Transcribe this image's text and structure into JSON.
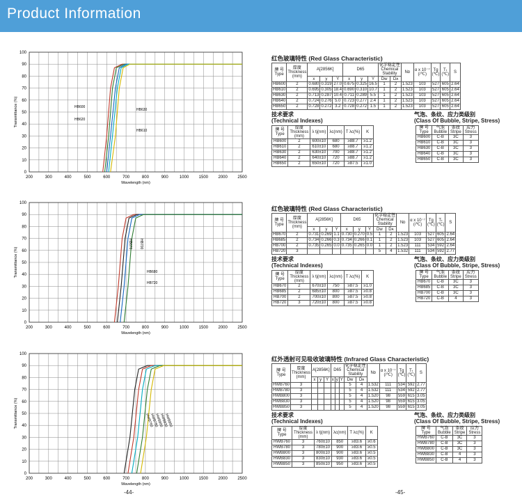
{
  "banner": {
    "title": "Product Information"
  },
  "axes": {
    "xticks": [
      "200",
      "300",
      "400",
      "500",
      "600",
      "700",
      "800",
      "900",
      "1000",
      "1500",
      "2000",
      "2500"
    ],
    "yticks": [
      "0",
      "10",
      "20",
      "30",
      "40",
      "50",
      "60",
      "70",
      "80",
      "90",
      "100"
    ],
    "xlabel": "Wavelength (nm)",
    "ylabel": "Transmittance (%)"
  },
  "chart_data": [
    {
      "type": "line",
      "xlabel": "Wavelength (nm)",
      "ylabel": "Transmittance (%)",
      "ylim": [
        0,
        100
      ],
      "x_ticks": [
        "200",
        "300",
        "400",
        "500",
        "600",
        "700",
        "800",
        "900",
        "1000",
        "1500",
        "2000",
        "2500"
      ],
      "series": [
        {
          "name": "HB600",
          "color": "#c0392b",
          "points": [
            [
              580,
              0
            ],
            [
              600,
              30
            ],
            [
              620,
              70
            ],
            [
              640,
              87
            ],
            [
              680,
              90
            ],
            [
              2500,
              90
            ]
          ]
        },
        {
          "name": "HB610",
          "color": "#2e7d32",
          "points": [
            [
              590,
              0
            ],
            [
              610,
              30
            ],
            [
              630,
              70
            ],
            [
              650,
              87
            ],
            [
              690,
              90
            ],
            [
              2500,
              90
            ]
          ]
        },
        {
          "name": "HB630",
          "color": "#1565c0",
          "points": [
            [
              600,
              0
            ],
            [
              620,
              30
            ],
            [
              645,
              70
            ],
            [
              665,
              87
            ],
            [
              700,
              90
            ],
            [
              2500,
              90
            ]
          ]
        },
        {
          "name": "HB640",
          "color": "#00acc1",
          "points": [
            [
              610,
              0
            ],
            [
              630,
              30
            ],
            [
              655,
              70
            ],
            [
              675,
              87
            ],
            [
              710,
              90
            ],
            [
              2500,
              90
            ]
          ]
        },
        {
          "name": "HB650",
          "color": "#d4b800",
          "points": [
            [
              620,
              0
            ],
            [
              645,
              30
            ],
            [
              665,
              70
            ],
            [
              685,
              87
            ],
            [
              720,
              90
            ],
            [
              2500,
              90
            ]
          ]
        }
      ],
      "annotations": [
        "HB600",
        "HB630",
        "HB620",
        "HB610"
      ]
    },
    {
      "type": "line",
      "xlabel": "Wavelength (nm)",
      "ylabel": "Transmittance (%)",
      "ylim": [
        0,
        100
      ],
      "x_ticks": [
        "200",
        "300",
        "400",
        "500",
        "600",
        "700",
        "800",
        "900",
        "1000",
        "1500",
        "2000",
        "2500"
      ],
      "series": [
        {
          "name": "HB670",
          "color": "#c0392b",
          "points": [
            [
              640,
              0
            ],
            [
              660,
              30
            ],
            [
              680,
              70
            ],
            [
              700,
              87
            ],
            [
              740,
              90
            ],
            [
              2500,
              90
            ]
          ]
        },
        {
          "name": "HB685",
          "color": "#222222",
          "points": [
            [
              655,
              0
            ],
            [
              675,
              30
            ],
            [
              695,
              70
            ],
            [
              715,
              87
            ],
            [
              755,
              90
            ],
            [
              2500,
              90
            ]
          ]
        },
        {
          "name": "HB700",
          "color": "#1565c0",
          "points": [
            [
              670,
              0
            ],
            [
              690,
              30
            ],
            [
              710,
              70
            ],
            [
              730,
              87
            ],
            [
              770,
              90
            ],
            [
              2500,
              90
            ]
          ]
        },
        {
          "name": "HB720",
          "color": "#2e7d32",
          "points": [
            [
              690,
              0
            ],
            [
              710,
              30
            ],
            [
              730,
              70
            ],
            [
              750,
              87
            ],
            [
              790,
              90
            ],
            [
              2500,
              90
            ]
          ]
        }
      ],
      "annotations": [
        "HB670",
        "HB700",
        "HB680",
        "HB720"
      ]
    },
    {
      "type": "line",
      "xlabel": "Wavelength (nm)",
      "ylabel": "Transmittance (%)",
      "ylim": [
        0,
        100
      ],
      "x_ticks": [
        "200",
        "300",
        "400",
        "500",
        "600",
        "700",
        "800",
        "900",
        "1000",
        "1500",
        "2000",
        "2500"
      ],
      "series": [
        {
          "name": "HWB760",
          "color": "#222222",
          "points": [
            [
              690,
              0
            ],
            [
              720,
              30
            ],
            [
              745,
              70
            ],
            [
              765,
              87
            ],
            [
              810,
              90
            ],
            [
              2500,
              90
            ]
          ]
        },
        {
          "name": "HWB780",
          "color": "#c0392b",
          "points": [
            [
              710,
              0
            ],
            [
              740,
              30
            ],
            [
              765,
              70
            ],
            [
              785,
              87
            ],
            [
              830,
              90
            ],
            [
              2500,
              90
            ]
          ]
        },
        {
          "name": "HWB800",
          "color": "#00acc1",
          "points": [
            [
              730,
              0
            ],
            [
              760,
              30
            ],
            [
              785,
              70
            ],
            [
              805,
              87
            ],
            [
              850,
              90
            ],
            [
              2500,
              90
            ]
          ]
        },
        {
          "name": "HWB830",
          "color": "#2e7d32",
          "points": [
            [
              755,
              0
            ],
            [
              785,
              30
            ],
            [
              810,
              70
            ],
            [
              830,
              87
            ],
            [
              875,
              90
            ],
            [
              2500,
              90
            ]
          ]
        },
        {
          "name": "HWB850",
          "color": "#d4b800",
          "points": [
            [
              775,
              0
            ],
            [
              805,
              30
            ],
            [
              830,
              70
            ],
            [
              850,
              87
            ],
            [
              895,
              90
            ],
            [
              2500,
              90
            ]
          ]
        }
      ],
      "annotations": [
        "HWB760",
        "HWB780",
        "HWB800",
        "HWB830",
        "HWB850"
      ]
    }
  ],
  "sections": [
    {
      "title": "红色玻璃特性 (Red Glass Characteristic)",
      "prop_headers": {
        "type": "牌 号\nType",
        "thickness": "厚度\nThickness\n(mm)",
        "a2856": "A[2856K]",
        "d65": "D65",
        "stability": "化学稳定性\nChemical\nStability",
        "nd": "Nᴅ",
        "alpha": "α x 10⁻⁷\n(/℃)",
        "tg": "Tɡ\n(℃)",
        "tt": "Tₜ\n(℃)",
        "s": "S",
        "x": "x",
        "y": "y",
        "Y": "Y",
        "dw": "Dᴡ",
        "da": "Dᴀ"
      },
      "rows": [
        [
          "HB600",
          "2",
          "0.680",
          "0.319",
          "27.0",
          "0.675",
          "0.325",
          "16.5",
          "1",
          "2",
          "1.523",
          "103",
          "527",
          "605",
          "2.64"
        ],
        [
          "HB610",
          "2",
          "0.695",
          "0.305",
          "18.4",
          "0.690",
          "0.310",
          "10.7",
          "1",
          "2",
          "1.523",
          "103",
          "527",
          "605",
          "2.64"
        ],
        [
          "HB630",
          "2",
          "0.713",
          "0.287",
          "10.4",
          "0.711",
          "0.289",
          "5.5",
          "1",
          "2",
          "1.523",
          "103",
          "527",
          "605",
          "2.64"
        ],
        [
          "HB640",
          "2",
          "0.724",
          "0.276",
          "5.0",
          "0.723",
          "0.277",
          "2.4",
          "1",
          "2",
          "1.523",
          "103",
          "527",
          "605",
          "2.64"
        ],
        [
          "HB650",
          "2",
          "0.728",
          "0.272",
          "3.2",
          "0.728",
          "0.272",
          "1.5",
          "1",
          "2",
          "1.523",
          "103",
          "527",
          "605",
          "2.64"
        ]
      ],
      "tech": {
        "title": "技术要求\n(Technical Indexes)",
        "headers": [
          "牌 号\nType",
          "厚度\nThickness\n(mm)",
          "λ tj(nm)",
          "λc(nm)",
          "T λc(%)",
          "K"
        ],
        "rows": [
          [
            "HB600",
            "2",
            "600±10",
            "680",
            "≥88.7",
            "≥1.2"
          ],
          [
            "HB610",
            "2",
            "610±10",
            "680",
            "≥88.7",
            "≥1.2"
          ],
          [
            "HB630",
            "2",
            "630±10",
            "700",
            "≥88.7",
            "≥1.2"
          ],
          [
            "HB640",
            "2",
            "640±10",
            "720",
            "≥88.7",
            "≥1.2"
          ],
          [
            "HB650",
            "2",
            "650±10",
            "720",
            "≥87.5",
            "≥1.0"
          ]
        ]
      },
      "cls": {
        "title": "气泡、条纹、应力类级别\n(Class Of Bubble, Stripe, Stress)",
        "headers": [
          "牌 号\nType",
          "气泡\nBubble",
          "条纹\nStripe",
          "应力\nStress"
        ],
        "rows": [
          [
            "HB600",
            "C-B",
            "3C",
            "3"
          ],
          [
            "HB610",
            "C-B",
            "3C",
            "3"
          ],
          [
            "HB630",
            "C-B",
            "3C",
            "3"
          ],
          [
            "HB640",
            "C-B",
            "3C",
            "3"
          ],
          [
            "HB650",
            "C-B",
            "3C",
            "3"
          ]
        ]
      }
    },
    {
      "title": "红色玻璃特性 (Red Glass Characteristic)",
      "prop_headers": {
        "type": "牌 号\nType",
        "thickness": "厚度\nThickness\n(mm)",
        "a2856": "A[2856K]",
        "d65": "D65",
        "stability": "化学稳定性\nChemical\nStability",
        "nd": "Nᴅ",
        "alpha": "α x 10⁻⁷\n(/℃)",
        "tg": "Tɡ\n(℃)",
        "tt": "Tₜ\n(℃)",
        "s": "S",
        "x": "x",
        "y": "y",
        "Y": "Y",
        "dw": "Dᴡ",
        "da": "Dᴀ"
      },
      "rows": [
        [
          "HB670",
          "2",
          "0.731",
          "0.269",
          "1.1",
          "0.730",
          "0.270",
          "0.5",
          "1",
          "2",
          "1.523",
          "103",
          "527",
          "605",
          "2.64"
        ],
        [
          "HB685",
          "2",
          "0.734",
          "0.266",
          "0.3",
          "0.734",
          "0.266",
          "0.1",
          "1",
          "2",
          "1.523",
          "103",
          "527",
          "605",
          "2.64"
        ],
        [
          "HB700",
          "2",
          "0.735",
          "0.265",
          "0.0",
          "0.735",
          "0.265",
          "0.0",
          "1",
          "2",
          "1.523",
          "111",
          "534",
          "592",
          "2.64"
        ],
        [
          "HB720",
          "3",
          "",
          "",
          "",
          "",
          "",
          "",
          "5",
          "4",
          "1.532",
          "111",
          "534",
          "592",
          "2.77"
        ]
      ],
      "tech": {
        "title": "技术要求\n(Technical Indexes)",
        "headers": [
          "牌 号\nType",
          "厚度\nThickness\n(mm)",
          "λ tj(nm)",
          "λc(nm)",
          "T λc(%)",
          "K"
        ],
        "rows": [
          [
            "HB670",
            "2",
            "670±10",
            "750",
            "≥87.5",
            "≥1.0"
          ],
          [
            "HB685",
            "2",
            "685±10",
            "800",
            "≥87.5",
            "≥0.8"
          ],
          [
            "HB700",
            "2",
            "700±10",
            "800",
            "≥87.5",
            "≥0.8"
          ],
          [
            "HB720",
            "3",
            "720±10",
            "800",
            "≥87.5",
            "≥0.8"
          ]
        ]
      },
      "cls": {
        "title": "气泡、条纹、应力类级别\n(Class Of Bubble, Stripe, Stress)",
        "headers": [
          "牌 号\nType",
          "气泡\nBubble",
          "条纹\nStripe",
          "应力\nStress"
        ],
        "rows": [
          [
            "HB670",
            "C-B",
            "3C",
            "3"
          ],
          [
            "HB685",
            "C-B",
            "3C",
            "3"
          ],
          [
            "HB700",
            "C-B",
            "3C",
            "3"
          ],
          [
            "HB720",
            "C-B",
            "4",
            "3"
          ]
        ]
      }
    },
    {
      "title": "红外透射可见吸收玻璃特性 (Infrared Glass Characteristic)",
      "prop_headers": {
        "type": "牌 号\nType",
        "thickness": "厚度\nThickness\n(mm)",
        "a2856": "A[2856K]",
        "d65": "D65",
        "stability": "化学稳定性\nChemical\nStability",
        "nd": "Nᴅ",
        "alpha": "α x 10⁻⁷\n(/℃)",
        "tg": "Tɡ\n(℃)",
        "tt": "Tₜ\n(℃)",
        "s": "S",
        "x": "x",
        "y": "y",
        "Y": "Y",
        "dw": "Dᴡ",
        "da": "Dᴀ"
      },
      "rows": [
        [
          "HWB760",
          "3",
          "",
          "",
          "",
          "",
          "",
          "",
          "5",
          "4",
          "1.532",
          "111",
          "534",
          "592",
          "2.77"
        ],
        [
          "HWB780",
          "3",
          "",
          "",
          "",
          "",
          "",
          "",
          "5",
          "4",
          "1.532",
          "111",
          "534",
          "592",
          "2.77"
        ],
        [
          "HWB800",
          "3",
          "",
          "",
          "",
          "",
          "",
          "",
          "5",
          "4",
          "1.520",
          "98",
          "559",
          "615",
          "3.05"
        ],
        [
          "HWB830",
          "3",
          "",
          "",
          "",
          "",
          "",
          "",
          "5",
          "4",
          "1.520",
          "98",
          "559",
          "615",
          "3.05"
        ],
        [
          "HWB850",
          "3",
          "",
          "",
          "",
          "",
          "",
          "",
          "5",
          "4",
          "1.520",
          "98",
          "559",
          "615",
          "3.05"
        ]
      ],
      "tech": {
        "title": "技术要求\n(Technical Indexes)",
        "headers": [
          "牌 号\nType",
          "厚度\nThickness\n(mm)",
          "λ tj(nm)",
          "λc(nm)",
          "T λc(%)",
          "K"
        ],
        "rows": [
          [
            "HWB760",
            "3",
            "760±10",
            "850",
            "≥83.6",
            "≥0.6"
          ],
          [
            "HWB780",
            "3",
            "780±10",
            "900",
            "≥83.6",
            "≥0.5"
          ],
          [
            "HWB800",
            "3",
            "800±10",
            "900",
            "≥83.6",
            "≥0.5"
          ],
          [
            "HWB830",
            "3",
            "830±10",
            "930",
            "≥83.6",
            "≥0.5"
          ],
          [
            "HWB850",
            "3",
            "850±10",
            "950",
            "≥83.6",
            "≥0.5"
          ]
        ]
      },
      "cls": {
        "title": "气泡、条纹、应力类级别\n(Class Of Bubble, Stripe, Stress)",
        "headers": [
          "牌 号\nType",
          "气泡\nBubble",
          "条纹\nStripe",
          "应力\nStress"
        ],
        "rows": [
          [
            "HWB760",
            "C-B",
            "3C",
            "3"
          ],
          [
            "HWB780",
            "C-B",
            "3C",
            "3"
          ],
          [
            "HWB800",
            "C-B",
            "3C",
            "3"
          ],
          [
            "HWB830",
            "C-B",
            "4",
            "3"
          ],
          [
            "HWB850",
            "C-B",
            "4",
            "3"
          ]
        ]
      }
    }
  ],
  "pages": {
    "left": "-44-",
    "right": "-45-"
  }
}
